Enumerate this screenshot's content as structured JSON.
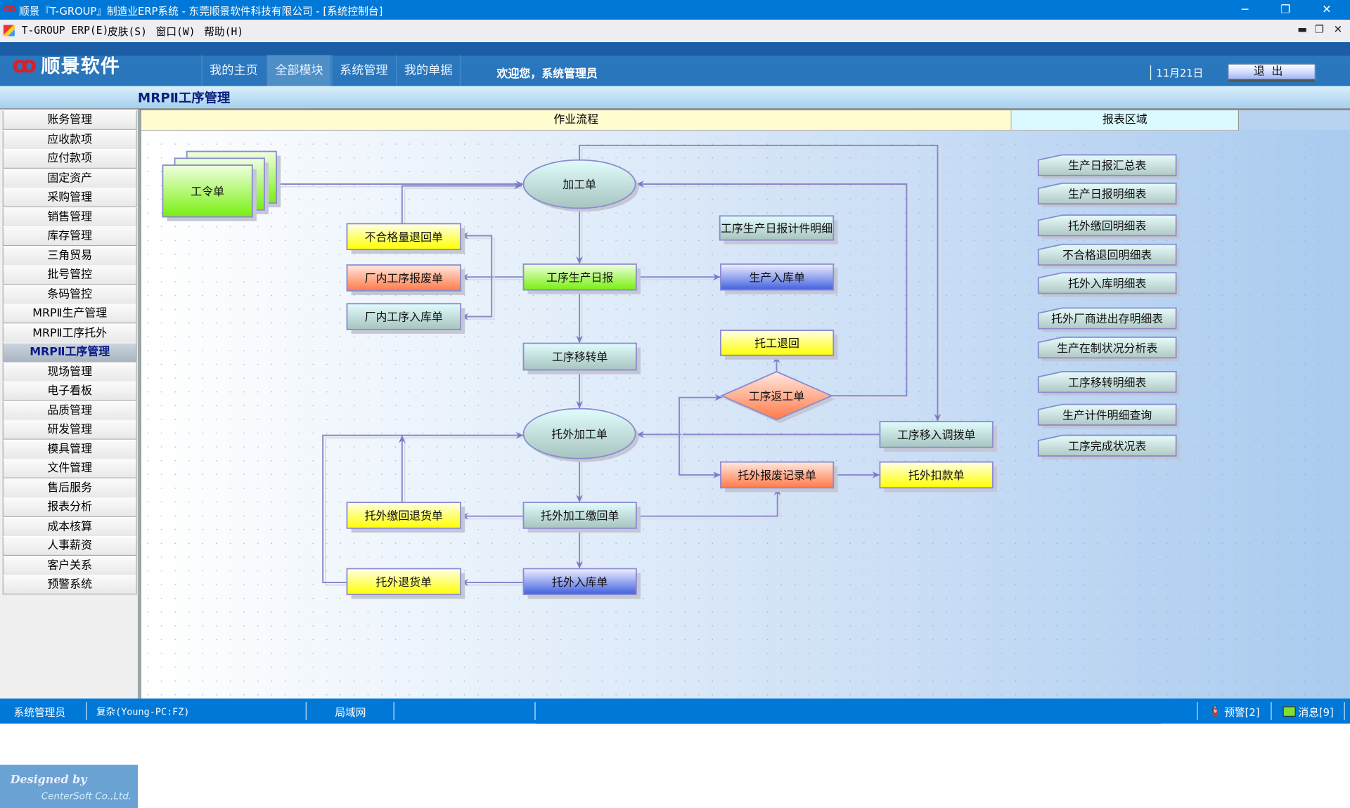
{
  "window": {
    "title": "顺景『T-GROUP』制造业ERP系统 - 东莞顺景软件科技有限公司 - [系统控制台]",
    "controls": [
      "minimize-icon",
      "restore-icon",
      "close-icon"
    ]
  },
  "menubar": {
    "items": [
      "T-GROUP ERP(E)",
      "皮肤(S)",
      "窗口(W)",
      "帮助(H)"
    ]
  },
  "header": {
    "brand": "顺景软件",
    "nav": [
      {
        "label": "我的主页",
        "active": false
      },
      {
        "label": "全部模块",
        "active": true
      },
      {
        "label": "系统管理",
        "active": false
      },
      {
        "label": "我的单据",
        "active": false
      }
    ],
    "welcome": "欢迎您，系统管理员",
    "date": "11月21日",
    "exit_label": "退出"
  },
  "page_title": "MRPⅡ工序管理",
  "sidebar": {
    "items": [
      "账务管理",
      "应收款项",
      "应付款项",
      "固定资产",
      "采购管理",
      "销售管理",
      "库存管理",
      "三角贸易",
      "批号管控",
      "条码管控",
      "MRPⅡ生产管理",
      "MRPⅡ工序托外",
      "MRPⅡ工序管理",
      "现场管理",
      "电子看板",
      "品质管理",
      "研发管理",
      "模具管理",
      "文件管理",
      "售后服务",
      "报表分析",
      "成本核算",
      "人事薪资",
      "客户关系",
      "预警系统"
    ],
    "active_index": 12,
    "designed_by": "Designed by",
    "company": "CenterSoft Co.,Ltd."
  },
  "main": {
    "tab_flow": "作业流程",
    "tab_report": "报表区域"
  },
  "flow": {
    "colors": {
      "green": "#80f020",
      "yellow": "#ffff20",
      "salmon": "#ff8a60",
      "gray": "#b8d0cc",
      "blue": "#5070e0",
      "edge": "#8888cc"
    },
    "nodes": [
      {
        "id": "gongling",
        "label": "工令单",
        "shape": "stack",
        "color": "green"
      },
      {
        "id": "jiagong",
        "label": "加工单",
        "shape": "ellipse",
        "color": "gray"
      },
      {
        "id": "buhege",
        "label": "不合格量退回单",
        "shape": "rect",
        "color": "yellow"
      },
      {
        "id": "baofei",
        "label": "厂内工序报废单",
        "shape": "rect",
        "color": "salmon"
      },
      {
        "id": "ruku",
        "label": "厂内工序入库单",
        "shape": "rect",
        "color": "gray"
      },
      {
        "id": "ribao",
        "label": "工序生产日报",
        "shape": "rect",
        "color": "green"
      },
      {
        "id": "jijian",
        "label": "工序生产日报计件明细",
        "shape": "rect",
        "color": "gray"
      },
      {
        "id": "shengchanruku",
        "label": "生产入库单",
        "shape": "rect",
        "color": "blue"
      },
      {
        "id": "tuogong",
        "label": "托工退回",
        "shape": "rect",
        "color": "yellow"
      },
      {
        "id": "yizhuan",
        "label": "工序移转单",
        "shape": "rect",
        "color": "gray"
      },
      {
        "id": "fangong",
        "label": "工序返工单",
        "shape": "diamond",
        "color": "salmon"
      },
      {
        "id": "tuowai",
        "label": "托外加工单",
        "shape": "ellipse",
        "color": "gray"
      },
      {
        "id": "diaobo",
        "label": "工序移入调拨单",
        "shape": "rect",
        "color": "gray"
      },
      {
        "id": "tuowaibaofei",
        "label": "托外报废记录单",
        "shape": "rect",
        "color": "salmon"
      },
      {
        "id": "koukuan",
        "label": "托外扣款单",
        "shape": "rect",
        "color": "yellow"
      },
      {
        "id": "jiaohuituihuo",
        "label": "托外缴回退货单",
        "shape": "rect",
        "color": "yellow"
      },
      {
        "id": "jiaohui",
        "label": "托外加工缴回单",
        "shape": "rect",
        "color": "gray"
      },
      {
        "id": "tuihuo",
        "label": "托外退货单",
        "shape": "rect",
        "color": "yellow"
      },
      {
        "id": "tuowairuku",
        "label": "托外入库单",
        "shape": "rect",
        "color": "blue"
      }
    ],
    "edges": [
      [
        "gongling",
        "jiagong"
      ],
      [
        "buhege",
        "jiagong"
      ],
      [
        "jiagong",
        "ribao"
      ],
      [
        "ribao",
        "baofei"
      ],
      [
        "ribao",
        "buhege"
      ],
      [
        "ribao",
        "ruku"
      ],
      [
        "ribao",
        "shengchanruku"
      ],
      [
        "ribao",
        "yizhuan"
      ],
      [
        "yizhuan",
        "tuowai"
      ],
      [
        "jiagong",
        "diaobo"
      ],
      [
        "fangong",
        "jiagong"
      ],
      [
        "fangong",
        "tuogong"
      ],
      [
        "diaobo",
        "tuowai"
      ],
      [
        "tuowai",
        "fangong"
      ],
      [
        "tuowai",
        "tuowaibaofei"
      ],
      [
        "tuowaibaofei",
        "koukuan"
      ],
      [
        "tuowai",
        "jiaohui"
      ],
      [
        "jiaohui",
        "jiaohuituihuo"
      ],
      [
        "jiaohui",
        "tuowaibaofei"
      ],
      [
        "jiaohui",
        "tuowairuku"
      ],
      [
        "tuowairuku",
        "tuihuo"
      ],
      [
        "tuihuo",
        "tuowai"
      ],
      [
        "jiaohuituihuo",
        "tuowai"
      ]
    ]
  },
  "reports": [
    "生产日报汇总表",
    "生产日报明细表",
    "托外缴回明细表",
    "不合格退回明细表",
    "托外入库明细表",
    "托外厂商进出存明细表",
    "生产在制状况分析表",
    "工序移转明细表",
    "生产计件明细查询",
    "工序完成状况表"
  ],
  "statusbar": {
    "user": "系统管理员",
    "host": "复杂(Young-PC:FZ)",
    "network": "局域网",
    "alerts": "预警[2]",
    "messages": "消息[9]"
  }
}
